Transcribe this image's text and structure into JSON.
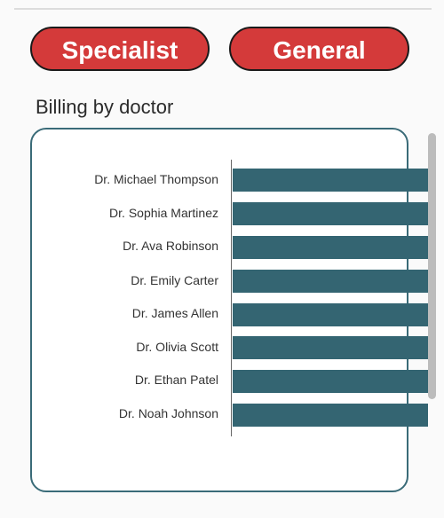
{
  "filters": {
    "specialist_label": "Specialist",
    "general_label": "General"
  },
  "section": {
    "title": "Billing by doctor"
  },
  "colors": {
    "pill_bg": "#d43a3a",
    "bar": "#346572",
    "card_border": "#3a6b78"
  },
  "chart_data": {
    "type": "bar",
    "orientation": "horizontal",
    "categories": [
      "Dr. Michael Thompson",
      "Dr. Sophia Martinez",
      "Dr. Ava Robinson",
      "Dr. Emily Carter",
      "Dr. James Allen",
      "Dr. Olivia Scott",
      "Dr. Ethan Patel",
      "Dr. Noah Johnson"
    ],
    "title": "",
    "xlabel": "",
    "ylabel": ""
  }
}
